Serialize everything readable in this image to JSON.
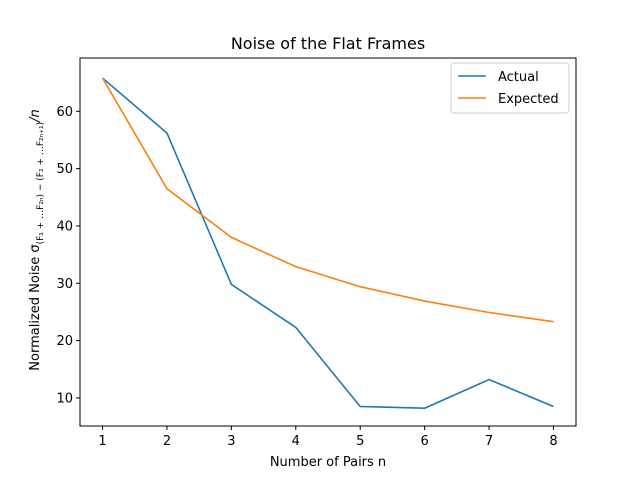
{
  "chart_data": {
    "type": "line",
    "title": "Noise of the Flat Frames",
    "xlabel": "Number of Pairs n",
    "ylabel": "Normalized Noise σ",
    "ylabel_subscript": "(F₁ + …F₂ₙ) − (F₂ + …F₂ₙ₊₁)",
    "ylabel_suffix": "/n",
    "x": [
      1,
      2,
      3,
      4,
      5,
      6,
      7,
      8
    ],
    "xlim": [
      0.65,
      8.35
    ],
    "ylim": [
      5.1,
      69.3
    ],
    "xticks": [
      1,
      2,
      3,
      4,
      5,
      6,
      7,
      8
    ],
    "yticks": [
      10,
      20,
      30,
      40,
      50,
      60
    ],
    "grid": false,
    "legend_position": "top-right",
    "series": [
      {
        "name": "Actual",
        "color": "#1f77b4",
        "values": [
          65.8,
          56.2,
          29.8,
          22.3,
          8.5,
          8.2,
          13.2,
          8.5
        ]
      },
      {
        "name": "Expected",
        "color": "#ff7f0e",
        "values": [
          65.8,
          46.5,
          38.0,
          32.9,
          29.4,
          26.9,
          24.9,
          23.3
        ]
      }
    ]
  }
}
